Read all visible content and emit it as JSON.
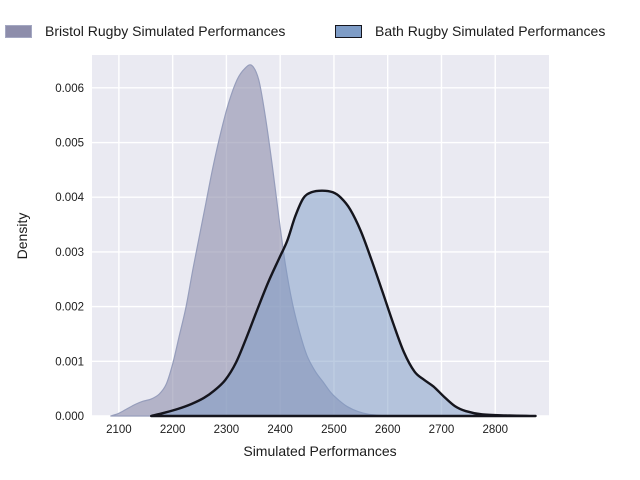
{
  "legend": {
    "items": [
      {
        "label": "Bristol Rugby Simulated Performances",
        "swatch_fill": "#8d8dab",
        "swatch_border": "#a4a8c2"
      },
      {
        "label": "Bath Rugby Simulated Performances",
        "swatch_fill": "#7e9cc6",
        "swatch_border": "#15151d"
      }
    ]
  },
  "chart_data": {
    "type": "area",
    "subtype": "kde-density",
    "title": "",
    "xlabel": "Simulated Performances",
    "ylabel": "Density",
    "xlim": [
      2050,
      2900
    ],
    "ylim": [
      0,
      0.0066
    ],
    "xticks": [
      2100,
      2200,
      2300,
      2400,
      2500,
      2600,
      2700,
      2800
    ],
    "yticks": [
      0.0,
      0.001,
      0.002,
      0.003,
      0.004,
      0.005,
      0.006
    ],
    "grid": true,
    "legend_position": "top-outside",
    "plot_background": "#eaeaf2",
    "grid_color": "#ffffff",
    "series": [
      {
        "name": "Bristol Rugby Simulated Performances",
        "fill": "rgba(141,141,171,0.6)",
        "stroke": "#969dbb",
        "stroke_width": 1.2,
        "peak": {
          "x": 2347,
          "y": 0.00641
        },
        "points": [
          [
            2085,
            0
          ],
          [
            2100,
            5e-05
          ],
          [
            2115,
            0.00013
          ],
          [
            2130,
            0.00021
          ],
          [
            2145,
            0.00027
          ],
          [
            2160,
            0.00031
          ],
          [
            2175,
            0.0004
          ],
          [
            2188,
            0.00058
          ],
          [
            2200,
            0.00095
          ],
          [
            2212,
            0.00145
          ],
          [
            2225,
            0.002
          ],
          [
            2238,
            0.0027
          ],
          [
            2250,
            0.0033
          ],
          [
            2262,
            0.0039
          ],
          [
            2275,
            0.00455
          ],
          [
            2290,
            0.0052
          ],
          [
            2305,
            0.00575
          ],
          [
            2320,
            0.00615
          ],
          [
            2334,
            0.00635
          ],
          [
            2347,
            0.00641
          ],
          [
            2360,
            0.00615
          ],
          [
            2372,
            0.0055
          ],
          [
            2385,
            0.0046
          ],
          [
            2398,
            0.0036
          ],
          [
            2410,
            0.00275
          ],
          [
            2423,
            0.00205
          ],
          [
            2437,
            0.0015
          ],
          [
            2450,
            0.0011
          ],
          [
            2465,
            0.00082
          ],
          [
            2480,
            0.00062
          ],
          [
            2495,
            0.00042
          ],
          [
            2510,
            0.00028
          ],
          [
            2525,
            0.00017
          ],
          [
            2545,
            8e-05
          ],
          [
            2565,
            3e-05
          ],
          [
            2600,
            0
          ]
        ]
      },
      {
        "name": "Bath Rugby Simulated Performances",
        "fill": "rgba(126,156,198,0.5)",
        "stroke": "#15151d",
        "stroke_width": 2.4,
        "peak": {
          "x": 2478,
          "y": 0.00412
        },
        "points": [
          [
            2160,
            0
          ],
          [
            2185,
            6e-05
          ],
          [
            2210,
            0.00013
          ],
          [
            2235,
            0.00022
          ],
          [
            2258,
            0.00033
          ],
          [
            2278,
            0.00047
          ],
          [
            2298,
            0.00066
          ],
          [
            2318,
            0.00098
          ],
          [
            2338,
            0.00145
          ],
          [
            2358,
            0.00196
          ],
          [
            2378,
            0.00245
          ],
          [
            2398,
            0.00288
          ],
          [
            2413,
            0.0032
          ],
          [
            2428,
            0.00365
          ],
          [
            2443,
            0.00398
          ],
          [
            2458,
            0.00409
          ],
          [
            2478,
            0.00412
          ],
          [
            2498,
            0.00409
          ],
          [
            2513,
            0.00399
          ],
          [
            2530,
            0.00378
          ],
          [
            2550,
            0.00338
          ],
          [
            2570,
            0.00285
          ],
          [
            2590,
            0.00228
          ],
          [
            2610,
            0.0017
          ],
          [
            2630,
            0.00117
          ],
          [
            2650,
            0.00081
          ],
          [
            2668,
            0.00066
          ],
          [
            2685,
            0.00054
          ],
          [
            2705,
            0.00035
          ],
          [
            2725,
            0.00018
          ],
          [
            2745,
            9e-05
          ],
          [
            2775,
            3e-05
          ],
          [
            2820,
            1e-05
          ],
          [
            2875,
            0
          ]
        ]
      }
    ]
  }
}
